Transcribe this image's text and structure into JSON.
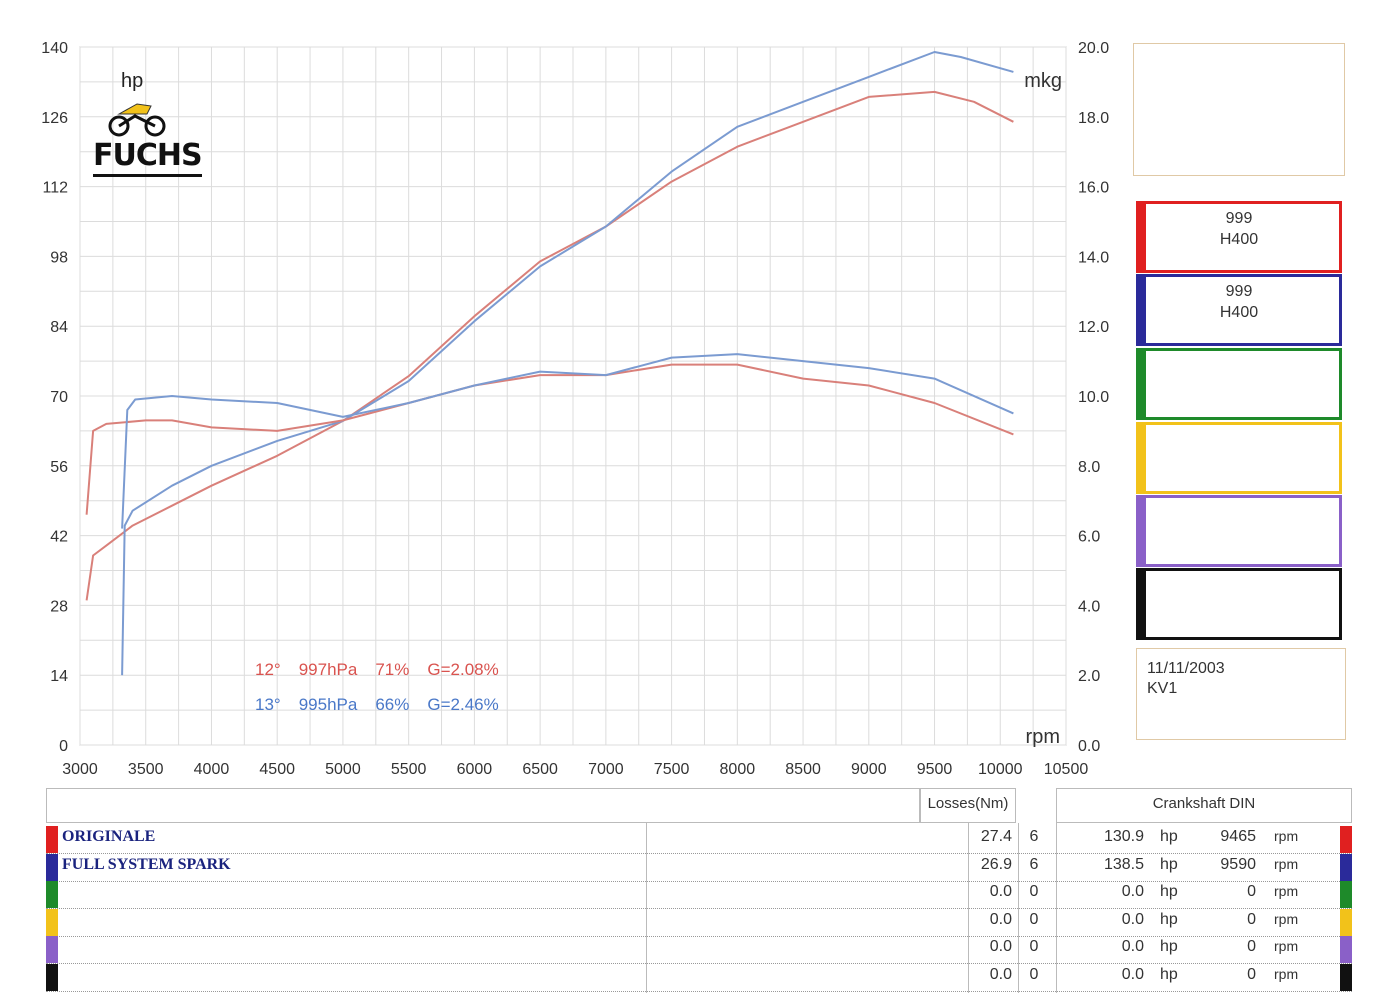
{
  "chart_data": {
    "type": "line",
    "xlabel": "rpm",
    "ylabel_left": "hp",
    "ylabel_right": "mkg",
    "xlim": [
      3000,
      10500
    ],
    "ylim_left": [
      0,
      140
    ],
    "ylim_right": [
      0,
      20
    ],
    "x_ticks": [
      "3000",
      "3500",
      "4000",
      "4500",
      "5000",
      "5500",
      "6000",
      "6500",
      "7000",
      "7500",
      "8000",
      "8500",
      "9000",
      "9500",
      "10000",
      "10500"
    ],
    "y_ticks_left": [
      "0",
      "14",
      "28",
      "42",
      "56",
      "70",
      "84",
      "98",
      "112",
      "126",
      "140"
    ],
    "y_ticks_right": [
      "0.0",
      "2.0",
      "4.0",
      "6.0",
      "8.0",
      "10.0",
      "12.0",
      "14.0",
      "16.0",
      "18.0",
      "20.0"
    ],
    "grid": true,
    "series": [
      {
        "name": "ORIGINALE",
        "color": "#d9807a",
        "axis": "left",
        "quantity": "hp",
        "x": [
          3050,
          3100,
          3200,
          3400,
          3700,
          4000,
          4500,
          5000,
          5500,
          6000,
          6500,
          7000,
          7500,
          8000,
          8500,
          9000,
          9500,
          9800,
          10100
        ],
        "y": [
          29,
          38,
          40,
          44,
          48,
          52,
          58,
          65,
          74,
          86,
          97,
          104,
          113,
          120,
          125,
          130,
          131,
          129,
          125
        ]
      },
      {
        "name": "FULL SYSTEM SPARK",
        "color": "#7b9bd1",
        "axis": "left",
        "quantity": "hp",
        "x": [
          3320,
          3340,
          3400,
          3700,
          4000,
          4500,
          5000,
          5500,
          6000,
          6500,
          7000,
          7500,
          8000,
          8500,
          9000,
          9500,
          9700,
          10100
        ],
        "y": [
          14,
          44,
          47,
          52,
          56,
          61,
          65,
          73,
          85,
          96,
          104,
          115,
          124,
          129,
          134,
          139,
          138,
          135
        ]
      },
      {
        "name": "ORIGINALE",
        "color": "#d9807a",
        "axis": "right",
        "quantity": "mkg",
        "x": [
          3050,
          3100,
          3200,
          3500,
          3700,
          4000,
          4500,
          5000,
          5500,
          6000,
          6500,
          7000,
          7500,
          8000,
          8500,
          9000,
          9500,
          10100
        ],
        "y": [
          6.6,
          9.0,
          9.2,
          9.3,
          9.3,
          9.1,
          9.0,
          9.3,
          9.8,
          10.3,
          10.6,
          10.6,
          10.9,
          10.9,
          10.5,
          10.3,
          9.8,
          8.9
        ]
      },
      {
        "name": "FULL SYSTEM SPARK",
        "color": "#7b9bd1",
        "axis": "right",
        "quantity": "mkg",
        "x": [
          3320,
          3360,
          3420,
          3700,
          4000,
          4500,
          5000,
          5500,
          6000,
          6500,
          7000,
          7500,
          8000,
          8500,
          9000,
          9500,
          10100
        ],
        "y": [
          6.2,
          9.6,
          9.9,
          10.0,
          9.9,
          9.8,
          9.4,
          9.8,
          10.3,
          10.7,
          10.6,
          11.1,
          11.2,
          11.0,
          10.8,
          10.5,
          9.5
        ]
      }
    ]
  },
  "logo": {
    "hp_label": "hp",
    "brand": "FUCHS"
  },
  "conditions": [
    {
      "temp": "12°",
      "pressure": "997hPa",
      "humidity": "71%",
      "g": "G=2.08%",
      "color": "#d9534f"
    },
    {
      "temp": "13°",
      "pressure": "995hPa",
      "humidity": "66%",
      "g": "G=2.46%",
      "color": "#4a78c8"
    }
  ],
  "side_panel": {
    "boxes": [
      {
        "color": "#e02020",
        "line1": "999",
        "line2": "H400"
      },
      {
        "color": "#2a2a9a",
        "line1": "999",
        "line2": "H400"
      },
      {
        "color": "#1e8a2a",
        "line1": "",
        "line2": ""
      },
      {
        "color": "#f2c21a",
        "line1": "",
        "line2": ""
      },
      {
        "color": "#8a60c8",
        "line1": "",
        "line2": ""
      },
      {
        "color": "#111111",
        "line1": "",
        "line2": ""
      }
    ],
    "date": "11/11/2003",
    "code": "KV1"
  },
  "table": {
    "losses_header": "Losses(Nm)",
    "crankshaft_header": "Crankshaft DIN",
    "rows": [
      {
        "name": "ORIGINALE",
        "color": "#e02020",
        "loss": "27.4",
        "n": "6",
        "power": "130.9",
        "power_unit": "hp",
        "rpm": "9465",
        "rpm_unit": "rpm"
      },
      {
        "name": "FULL SYSTEM SPARK",
        "color": "#2a2a9a",
        "loss": "26.9",
        "n": "6",
        "power": "138.5",
        "power_unit": "hp",
        "rpm": "9590",
        "rpm_unit": "rpm"
      },
      {
        "name": "",
        "color": "#1e8a2a",
        "loss": "0.0",
        "n": "0",
        "power": "0.0",
        "power_unit": "hp",
        "rpm": "0",
        "rpm_unit": "rpm"
      },
      {
        "name": "",
        "color": "#f2c21a",
        "loss": "0.0",
        "n": "0",
        "power": "0.0",
        "power_unit": "hp",
        "rpm": "0",
        "rpm_unit": "rpm"
      },
      {
        "name": "",
        "color": "#8a60c8",
        "loss": "0.0",
        "n": "0",
        "power": "0.0",
        "power_unit": "hp",
        "rpm": "0",
        "rpm_unit": "rpm"
      },
      {
        "name": "",
        "color": "#111111",
        "loss": "0.0",
        "n": "0",
        "power": "0.0",
        "power_unit": "hp",
        "rpm": "0",
        "rpm_unit": "rpm"
      }
    ]
  }
}
